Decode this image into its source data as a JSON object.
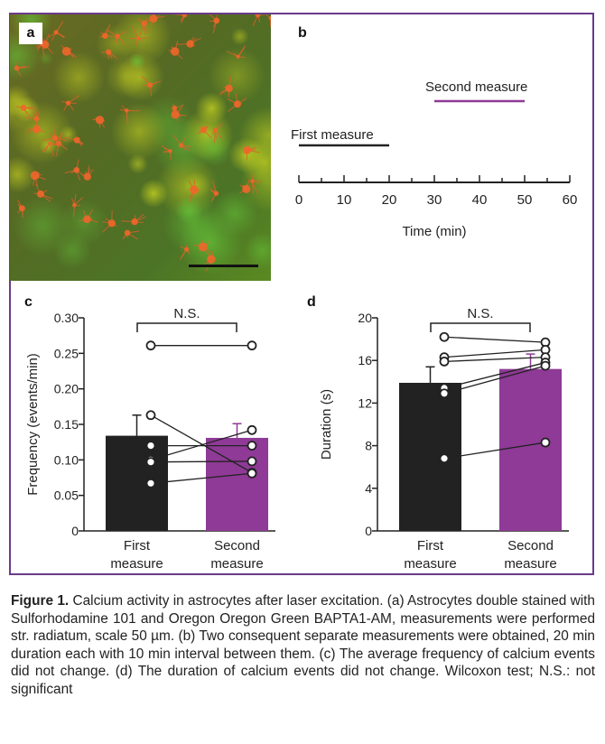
{
  "panels": {
    "a": {
      "letter": "a"
    },
    "b": {
      "letter": "b",
      "first_label": "First measure",
      "second_label": "Second measure",
      "xlabel": "Time (min)",
      "ticks": [
        0,
        10,
        20,
        30,
        40,
        50,
        60
      ],
      "colors": {
        "first": "#222222",
        "second": "#8e3a96"
      }
    },
    "c": {
      "letter": "c"
    },
    "d": {
      "letter": "d"
    }
  },
  "chart_data": [
    {
      "type": "timeline",
      "panel": "b",
      "xlabel": "Time (min)",
      "xlim": [
        0,
        60
      ],
      "segments": [
        {
          "name": "First measure",
          "start": 0,
          "end": 20
        },
        {
          "name": "Second measure",
          "start": 30,
          "end": 50
        }
      ]
    },
    {
      "type": "bar",
      "panel": "c",
      "categories": [
        "First\nmeasure",
        "Second\nmeasure"
      ],
      "category_lines": [
        [
          "First",
          "measure"
        ],
        [
          "Second",
          "measure"
        ]
      ],
      "values": [
        0.134,
        0.131
      ],
      "errors": [
        0.029,
        0.02
      ],
      "ylabel": "Frequency (events/min)",
      "ylim": [
        0,
        0.3
      ],
      "yticks": [
        "0",
        "0.05",
        "0.10",
        "0.15",
        "0.20",
        "0.25",
        "0.30"
      ],
      "ytick_values": [
        0,
        0.05,
        0.1,
        0.15,
        0.2,
        0.25,
        0.3
      ],
      "significance": "N.S.",
      "paired_points": [
        [
          0.261,
          0.261
        ],
        [
          0.163,
          0.082
        ],
        [
          0.12,
          0.12
        ],
        [
          0.1,
          0.142
        ],
        [
          0.097,
          0.098
        ],
        [
          0.067,
          0.081
        ]
      ],
      "colors": [
        "#222222",
        "#8e3a96"
      ]
    },
    {
      "type": "bar",
      "panel": "d",
      "categories": [
        "First\nmeasure",
        "Second\nmeasure"
      ],
      "category_lines": [
        [
          "First",
          "measure"
        ],
        [
          "Second",
          "measure"
        ]
      ],
      "values": [
        13.9,
        15.2
      ],
      "errors": [
        1.5,
        1.4
      ],
      "ylabel": "Duration (s)",
      "ylim": [
        0,
        20
      ],
      "yticks": [
        "0",
        "4",
        "8",
        "12",
        "16",
        "20"
      ],
      "ytick_values": [
        0,
        4,
        8,
        12,
        16,
        20
      ],
      "significance": "N.S.",
      "paired_points": [
        [
          18.2,
          17.7
        ],
        [
          16.3,
          17.0
        ],
        [
          15.9,
          16.3
        ],
        [
          13.4,
          15.8
        ],
        [
          12.9,
          15.5
        ],
        [
          6.8,
          8.3
        ]
      ],
      "colors": [
        "#222222",
        "#8e3a96"
      ]
    }
  ],
  "caption": {
    "bold": "Figure 1.",
    "text": " Calcium activity in astrocytes after laser excitation. (a) Astrocytes double stained with Sulforhodamine 101 and Oregon Oregon Green BAPTA1-AM, measurements were performed str. radiatum, scale 50 µm. (b) Two consequent separate measurements were obtained, 20 min duration each with 10 min interval between them. (c) The average frequency of calcium events did not change. (d) The duration of calcium events did not change. Wilcoxon test; N.S.: not significant"
  }
}
